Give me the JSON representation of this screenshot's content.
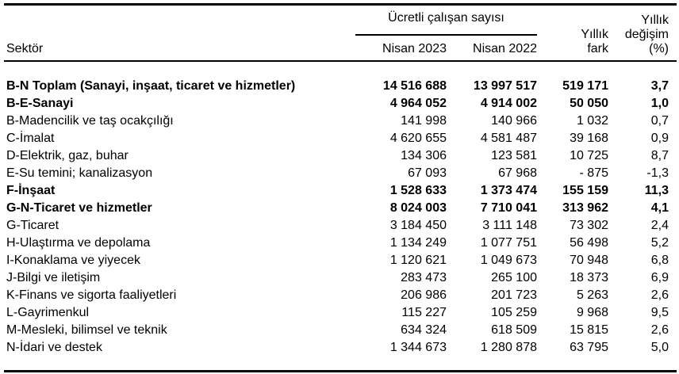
{
  "page": {
    "background_color": "#ffffff",
    "text_color": "#000000",
    "rule_color": "#000000"
  },
  "table": {
    "header": {
      "sector": "Sektör",
      "group": "Ücretli çalışan sayısı",
      "col_nisan_2023": "Nisan 2023",
      "col_nisan_2022": "Nisan 2022",
      "col_yillik_fark": "Yıllık fark",
      "col_yillik_degisim": "Yıllık değişim (%)"
    },
    "rows": [
      {
        "sector": "B-N Toplam (Sanayi, inşaat, ticaret ve hizmetler)",
        "nisan_2023": "14 516 688",
        "nisan_2022": "13 997 517",
        "yillik_fark": "519 171",
        "yillik_degisim": "3,7",
        "bold": true
      },
      {
        "sector": "B-E-Sanayi",
        "nisan_2023": "4 964 052",
        "nisan_2022": "4 914 002",
        "yillik_fark": "50 050",
        "yillik_degisim": "1,0",
        "bold": true
      },
      {
        "sector": "B-Madencilik ve taş ocakçılığı",
        "nisan_2023": "141 998",
        "nisan_2022": "140 966",
        "yillik_fark": "1 032",
        "yillik_degisim": "0,7",
        "bold": false
      },
      {
        "sector": "C-İmalat",
        "nisan_2023": "4 620 655",
        "nisan_2022": "4 581 487",
        "yillik_fark": "39 168",
        "yillik_degisim": "0,9",
        "bold": false
      },
      {
        "sector": "D-Elektrik, gaz, buhar",
        "nisan_2023": "134 306",
        "nisan_2022": "123 581",
        "yillik_fark": "10 725",
        "yillik_degisim": "8,7",
        "bold": false
      },
      {
        "sector": "E-Su temini; kanalizasyon",
        "nisan_2023": "67 093",
        "nisan_2022": "67 968",
        "yillik_fark": "- 875",
        "yillik_degisim": "-1,3",
        "bold": false
      },
      {
        "sector": "F-İnşaat",
        "nisan_2023": "1 528 633",
        "nisan_2022": "1 373 474",
        "yillik_fark": "155 159",
        "yillik_degisim": "11,3",
        "bold": true
      },
      {
        "sector": "G-N-Ticaret ve hizmetler",
        "nisan_2023": "8 024 003",
        "nisan_2022": "7 710 041",
        "yillik_fark": "313 962",
        "yillik_degisim": "4,1",
        "bold": true
      },
      {
        "sector": "G-Ticaret",
        "nisan_2023": "3 184 450",
        "nisan_2022": "3 111 148",
        "yillik_fark": "73 302",
        "yillik_degisim": "2,4",
        "bold": false
      },
      {
        "sector": "H-Ulaştırma ve depolama",
        "nisan_2023": "1 134 249",
        "nisan_2022": "1 077 751",
        "yillik_fark": "56 498",
        "yillik_degisim": "5,2",
        "bold": false
      },
      {
        "sector": "I-Konaklama ve yiyecek",
        "nisan_2023": "1 120 621",
        "nisan_2022": "1 049 673",
        "yillik_fark": "70 948",
        "yillik_degisim": "6,8",
        "bold": false
      },
      {
        "sector": "J-Bilgi ve iletişim",
        "nisan_2023": "283 473",
        "nisan_2022": "265 100",
        "yillik_fark": "18 373",
        "yillik_degisim": "6,9",
        "bold": false
      },
      {
        "sector": "K-Finans ve sigorta faaliyetleri",
        "nisan_2023": "206 986",
        "nisan_2022": "201 723",
        "yillik_fark": "5 263",
        "yillik_degisim": "2,6",
        "bold": false
      },
      {
        "sector": "L-Gayrimenkul",
        "nisan_2023": "115 227",
        "nisan_2022": "105 259",
        "yillik_fark": "9 968",
        "yillik_degisim": "9,5",
        "bold": false
      },
      {
        "sector": "M-Mesleki, bilimsel ve teknik",
        "nisan_2023": "634 324",
        "nisan_2022": "618 509",
        "yillik_fark": "15 815",
        "yillik_degisim": "2,6",
        "bold": false
      },
      {
        "sector": "N-İdari ve destek",
        "nisan_2023": "1 344 673",
        "nisan_2022": "1 280 878",
        "yillik_fark": "63 795",
        "yillik_degisim": "5,0",
        "bold": false
      }
    ]
  }
}
